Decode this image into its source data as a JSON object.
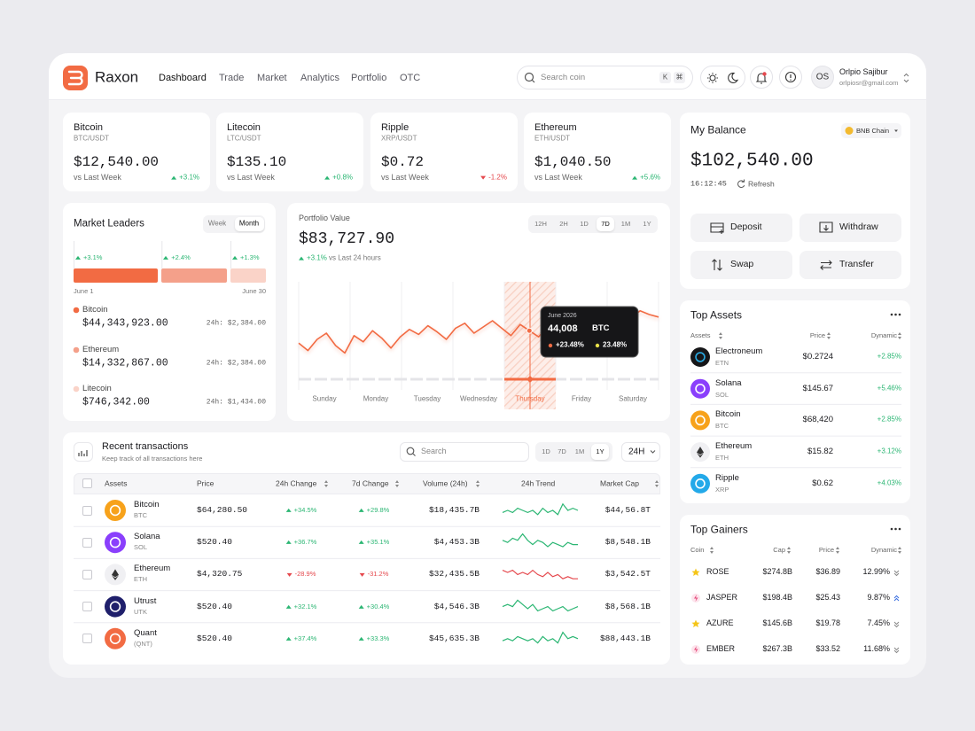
{
  "header": {
    "brand": "Raxon",
    "nav": [
      "Dashboard",
      "Trade",
      "Market",
      "Analytics",
      "Portfolio",
      "OTC"
    ],
    "active_nav": "Dashboard",
    "search_placeholder": "Search coin",
    "shortcut_keys": [
      "K",
      "⌘"
    ],
    "user": {
      "initials": "OS",
      "name": "Orlpio Sajibur",
      "email": "orlpiosr@gmail.com"
    }
  },
  "tickers": [
    {
      "name": "Bitcoin",
      "pair": "BTC/USDT",
      "price": "$12,540.00",
      "compare": "vs Last Week",
      "change": "+3.1%"
    },
    {
      "name": "Litecoin",
      "pair": "LTC/USDT",
      "price": "$135.10",
      "compare": "vs Last Week",
      "change": "+0.8%"
    },
    {
      "name": "Ripple",
      "pair": "XRP/USDT",
      "price": "$0.72",
      "compare": "vs Last Week",
      "change": "-1.2%"
    },
    {
      "name": "Ethereum",
      "pair": "ETH/USDT",
      "price": "$1,040.50",
      "compare": "vs Last Week",
      "change": "+5.6%"
    }
  ],
  "market_leaders": {
    "title": "Market Leaders",
    "tabs": [
      "Week",
      "Month"
    ],
    "active_tab": "Month",
    "period_start": "June 1",
    "period_end": "June 30",
    "bars": [
      {
        "change": 3.1,
        "change_label": "+3.1%"
      },
      {
        "change": 2.4,
        "change_label": "+2.4%"
      },
      {
        "change": 1.3,
        "change_label": "+1.3%"
      }
    ],
    "leaders": [
      {
        "name": "Bitcoin",
        "value": "$44,343,923.00",
        "change_24h": "24h: $2,384.00"
      },
      {
        "name": "Ethereum",
        "value": "$14,332,867.00",
        "change_24h": "24h: $2,384.00"
      },
      {
        "name": "Litecoin",
        "value": "$746,342.00",
        "change_24h": "24h: $1,434.00"
      }
    ]
  },
  "portfolio": {
    "title": "Portfolio Value",
    "value": "$83,727.90",
    "change": "+3.1%",
    "compare": "vs Last 24 hours",
    "ranges": [
      "12H",
      "2H",
      "1D",
      "7D",
      "1M",
      "1Y"
    ],
    "active_range": "7D",
    "days": [
      "Sunday",
      "Monday",
      "Tuesday",
      "Wednesday",
      "Thursday",
      "Friday",
      "Saturday"
    ],
    "highlight": "Thursday",
    "trend": {
      "values": [
        52,
        46,
        55,
        60,
        50,
        44,
        58,
        53,
        62,
        56,
        48,
        57,
        63,
        59,
        66,
        61,
        55,
        64,
        68,
        60,
        65,
        70,
        64,
        58,
        67,
        62,
        57,
        66,
        61,
        64,
        70,
        66,
        68,
        74,
        62,
        68,
        72,
        78,
        75,
        73
      ],
      "ylim": [
        0,
        100
      ],
      "color": "#f26b43"
    },
    "tooltip": {
      "date": "June 2026",
      "value": "44,008",
      "coin": "BTC",
      "changes": [
        "+23.48%",
        "23.48%"
      ]
    }
  },
  "transactions": {
    "title": "Recent transactions",
    "subtitle": "Keep track of all transactions here",
    "search_placeholder": "Search",
    "ranges": [
      "1D",
      "7D",
      "1M",
      "1Y"
    ],
    "active_range": "1Y",
    "period": "24H",
    "columns": [
      "Assets",
      "Price",
      "24h Change",
      "7d Change",
      "Volume (24h)",
      "24h Trend",
      "Market Cap"
    ],
    "rows": [
      {
        "name": "Bitcoin",
        "symbol": "BTC",
        "price": "$64,280.50",
        "change_24h": "+34.5%",
        "change_7d": "+29.8%",
        "volume": "$18,435.7B",
        "trend": {
          "values": [
            4,
            5,
            4,
            6,
            5,
            4,
            5,
            3,
            6,
            4,
            5,
            3,
            8,
            5,
            6,
            5
          ],
          "ylim": [
            0,
            10
          ],
          "color": "#2bb673"
        },
        "market_cap": "$44,56.8T"
      },
      {
        "name": "Solana",
        "symbol": "SOL",
        "price": "$520.40",
        "change_24h": "+36.7%",
        "change_7d": "+35.1%",
        "volume": "$4,453.3B",
        "trend": {
          "values": [
            6,
            5,
            7,
            6,
            9,
            6,
            4,
            6,
            5,
            3,
            5,
            4,
            3,
            5,
            4,
            4
          ],
          "ylim": [
            0,
            10
          ],
          "color": "#2bb673"
        },
        "market_cap": "$8,548.1B"
      },
      {
        "name": "Ethereum",
        "symbol": "ETH",
        "price": "$4,320.75",
        "change_24h": "-28.9%",
        "change_7d": "-31.2%",
        "volume": "$32,435.5B",
        "trend": {
          "values": [
            7,
            6,
            7,
            5,
            6,
            5,
            7,
            5,
            4,
            6,
            4,
            5,
            3,
            4,
            3,
            3
          ],
          "ylim": [
            0,
            10
          ],
          "color": "#e5484d"
        },
        "market_cap": "$3,542.5T"
      },
      {
        "name": "Utrust",
        "symbol": "UTK",
        "price": "$520.40",
        "change_24h": "+32.1%",
        "change_7d": "+30.4%",
        "volume": "$4,546.3B",
        "trend": {
          "values": [
            5,
            6,
            5,
            8,
            6,
            4,
            6,
            3,
            4,
            5,
            3,
            4,
            5,
            3,
            4,
            5
          ],
          "ylim": [
            0,
            10
          ],
          "color": "#2bb673"
        },
        "market_cap": "$8,568.1B"
      },
      {
        "name": "Quant",
        "symbol": "(QNT)",
        "price": "$520.40",
        "change_24h": "+37.4%",
        "change_7d": "+33.3%",
        "volume": "$45,635.3B",
        "trend": {
          "values": [
            4,
            5,
            4,
            6,
            5,
            4,
            5,
            3,
            6,
            4,
            5,
            3,
            8,
            5,
            6,
            5
          ],
          "ylim": [
            0,
            10
          ],
          "color": "#2bb673"
        },
        "market_cap": "$88,443.1B"
      }
    ]
  },
  "balance": {
    "title": "My Balance",
    "chain": "BNB Chain",
    "value": "$102,540.00",
    "time": "16:12:45",
    "refresh": "Refresh",
    "actions": [
      "Deposit",
      "Withdraw",
      "Swap",
      "Transfer"
    ]
  },
  "top_assets": {
    "title": "Top Assets",
    "columns": [
      "Assets",
      "Price",
      "Dynamic"
    ],
    "rows": [
      {
        "name": "Electroneum",
        "symbol": "ETN",
        "price": "$0.2724",
        "dynamic": "+2.85%"
      },
      {
        "name": "Solana",
        "symbol": "SOL",
        "price": "$145.67",
        "dynamic": "+5.46%"
      },
      {
        "name": "Bitcoin",
        "symbol": "BTC",
        "price": "$68,420",
        "dynamic": "+2.85%"
      },
      {
        "name": "Ethereum",
        "symbol": "ETH",
        "price": "$15.82",
        "dynamic": "+3.12%"
      },
      {
        "name": "Ripple",
        "symbol": "XRP",
        "price": "$0.62",
        "dynamic": "+4.03%"
      }
    ]
  },
  "top_gainers": {
    "title": "Top Gainers",
    "columns": [
      "Coin",
      "Cap",
      "Price",
      "Dynamic"
    ],
    "rows": [
      {
        "name": "ROSE",
        "cap": "$274.8B",
        "price": "$36.89",
        "dynamic": "12.99%"
      },
      {
        "name": "JASPER",
        "cap": "$198.4B",
        "price": "$25.43",
        "dynamic": "9.87%"
      },
      {
        "name": "AZURE",
        "cap": "$145.6B",
        "price": "$19.78",
        "dynamic": "7.45%"
      },
      {
        "name": "EMBER",
        "cap": "$267.3B",
        "price": "$33.52",
        "dynamic": "11.68%"
      }
    ]
  }
}
